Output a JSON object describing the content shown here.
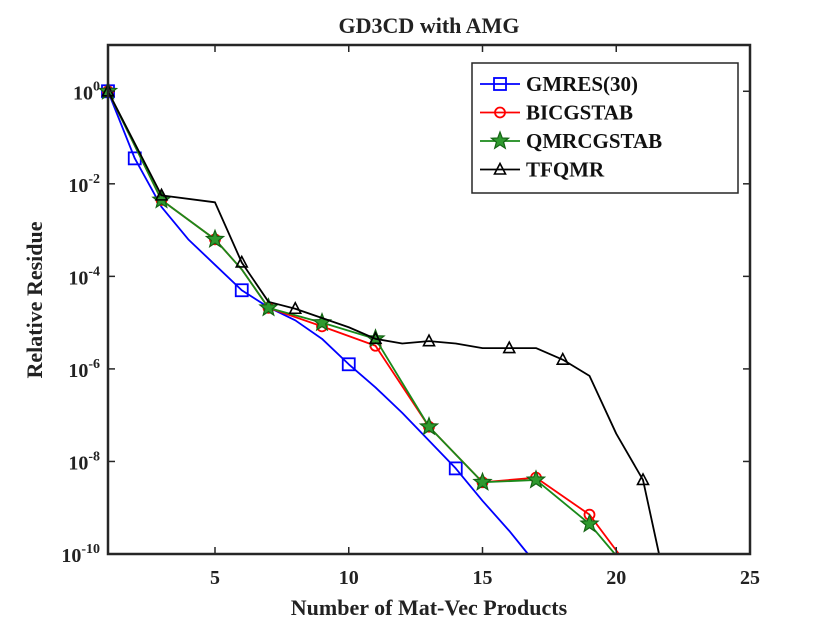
{
  "chart_data": {
    "type": "line",
    "title": "GD3CD with AMG",
    "xlabel": "Number of Mat-Vec Products",
    "ylabel": "Relative Residue",
    "xlim": [
      1,
      25
    ],
    "ylim_log10": [
      -10,
      1
    ],
    "yscale": "log",
    "grid": false,
    "legend_position": "top-right",
    "x_ticks": [
      5,
      10,
      15,
      20,
      25
    ],
    "x_tick_labels": [
      "5",
      "10",
      "15",
      "20",
      "25"
    ],
    "y_tick_exponents": [
      0,
      -2,
      -4,
      -6,
      -8,
      -10
    ],
    "y_tick_base": "10",
    "y_tick_exp_labels": [
      "0",
      "-2",
      "-4",
      "-6",
      "-8",
      "-10"
    ],
    "series": [
      {
        "name": "GMRES(30)",
        "color": "#0000ff",
        "marker": "square",
        "x": [
          1,
          2,
          3,
          4,
          5,
          6,
          7,
          8,
          9,
          10,
          11,
          12,
          13,
          14,
          15,
          16,
          16.7
        ],
        "log10_y": [
          0,
          -1.45,
          -2.5,
          -3.2,
          -3.75,
          -4.3,
          -4.67,
          -4.95,
          -5.35,
          -5.9,
          -6.4,
          -6.95,
          -7.55,
          -8.15,
          -8.85,
          -9.5,
          -10.0
        ],
        "marker_x": [
          1,
          2,
          6,
          10,
          14
        ],
        "marker_log10_y": [
          0,
          -1.45,
          -4.3,
          -5.9,
          -8.15
        ]
      },
      {
        "name": "BICGSTAB",
        "color": "#ff0000",
        "marker": "circle",
        "x": [
          1,
          3,
          5,
          6,
          7,
          9,
          11,
          13,
          15,
          17,
          19,
          20.1
        ],
        "log10_y": [
          0,
          -2.35,
          -3.2,
          -3.85,
          -4.68,
          -5.08,
          -5.5,
          -7.25,
          -8.45,
          -8.35,
          -9.15,
          -10.0
        ],
        "marker_x": [
          1,
          3,
          5,
          7,
          9,
          11,
          13,
          15,
          17,
          19
        ],
        "marker_log10_y": [
          0,
          -2.35,
          -3.2,
          -4.68,
          -5.08,
          -5.5,
          -7.25,
          -8.45,
          -8.35,
          -9.15
        ]
      },
      {
        "name": "QMRCGSTAB",
        "color": "#1a8a1a",
        "marker": "star",
        "x": [
          1,
          3,
          5,
          6,
          7,
          9,
          11,
          13,
          15,
          17,
          19,
          19.95
        ],
        "log10_y": [
          0,
          -2.35,
          -3.2,
          -3.85,
          -4.68,
          -5.0,
          -5.35,
          -7.25,
          -8.45,
          -8.4,
          -9.35,
          -10.0
        ],
        "marker_x": [
          1,
          3,
          5,
          7,
          9,
          11,
          13,
          15,
          17,
          19
        ],
        "marker_log10_y": [
          0,
          -2.35,
          -3.2,
          -4.68,
          -5.0,
          -5.35,
          -7.25,
          -8.45,
          -8.4,
          -9.35
        ]
      },
      {
        "name": "TFQMR",
        "color": "#000000",
        "marker": "triangle",
        "x": [
          1,
          3,
          5,
          6,
          7,
          8,
          9,
          10,
          11,
          12,
          13,
          14,
          15,
          16,
          17,
          18,
          19,
          20,
          21,
          21.6
        ],
        "log10_y": [
          0,
          -2.25,
          -2.4,
          -3.7,
          -4.55,
          -4.7,
          -4.9,
          -5.1,
          -5.35,
          -5.45,
          -5.4,
          -5.45,
          -5.55,
          -5.55,
          -5.55,
          -5.8,
          -6.15,
          -7.4,
          -8.4,
          -10.0
        ],
        "marker_x": [
          1,
          3,
          6,
          8,
          11,
          13,
          16,
          18,
          21
        ],
        "marker_log10_y": [
          0,
          -2.25,
          -3.7,
          -4.7,
          -5.35,
          -5.4,
          -5.55,
          -5.8,
          -8.4
        ]
      }
    ]
  }
}
